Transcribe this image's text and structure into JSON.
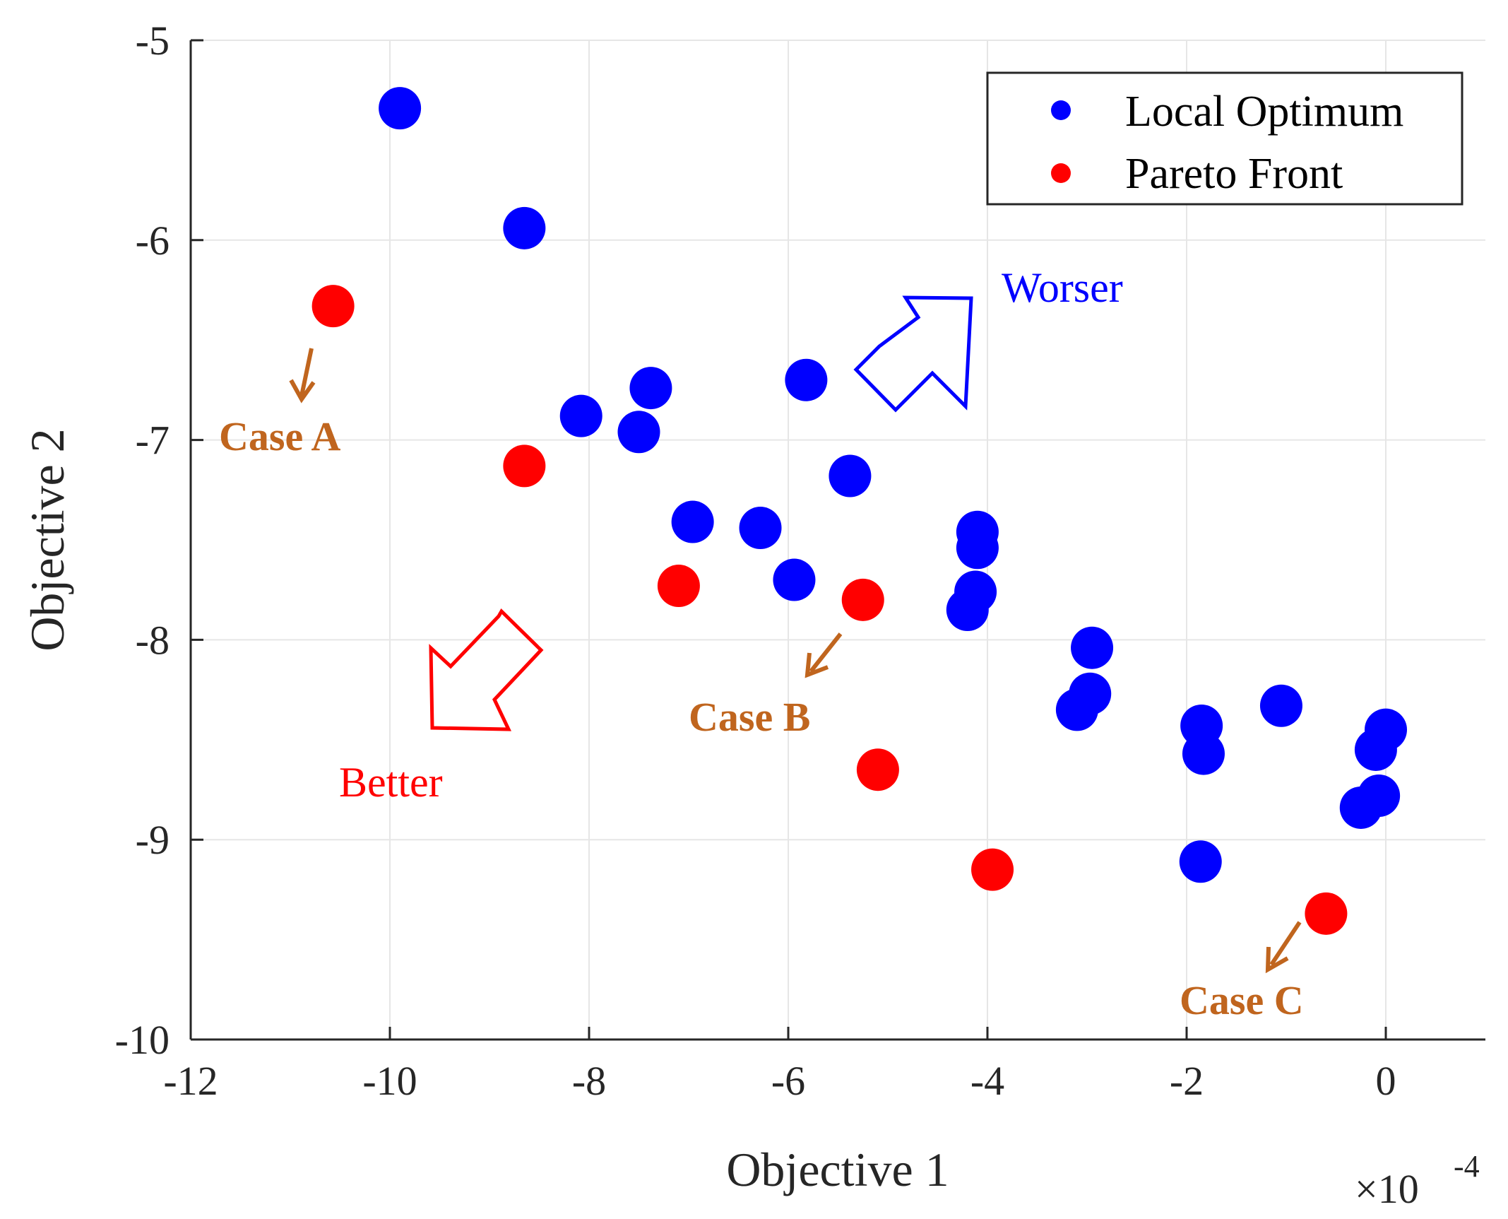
{
  "chart_data": {
    "type": "scatter",
    "title": "",
    "xlabel": "Objective 1",
    "ylabel": "Objective 2",
    "x_multiplier": "×10",
    "x_multiplier_exp": "-4",
    "xlim": [
      -12,
      1
    ],
    "ylim": [
      -10,
      -5
    ],
    "xticks": [
      -12,
      -10,
      -8,
      -6,
      -4,
      -2,
      0
    ],
    "yticks": [
      -5,
      -6,
      -7,
      -8,
      -9,
      -10
    ],
    "xtick_labels": [
      "-12",
      "-10",
      "-8",
      "-6",
      "-4",
      "-2",
      "0"
    ],
    "ytick_labels": [
      "-5",
      "-6",
      "-7",
      "-8",
      "-9",
      "-10"
    ],
    "grid": true,
    "legend_position": "top-right",
    "series": [
      {
        "name": "Local Optimum",
        "color": "#0000ff",
        "points": [
          [
            -9.9,
            -5.34
          ],
          [
            -8.65,
            -5.94
          ],
          [
            -7.38,
            -6.74
          ],
          [
            -8.08,
            -6.88
          ],
          [
            -7.5,
            -6.96
          ],
          [
            -5.82,
            -6.7
          ],
          [
            -5.38,
            -7.18
          ],
          [
            -6.96,
            -7.41
          ],
          [
            -6.28,
            -7.44
          ],
          [
            -5.94,
            -7.7
          ],
          [
            -4.1,
            -7.46
          ],
          [
            -4.1,
            -7.54
          ],
          [
            -4.12,
            -7.76
          ],
          [
            -4.2,
            -7.85
          ],
          [
            -2.95,
            -8.04
          ],
          [
            -2.97,
            -8.27
          ],
          [
            -3.1,
            -8.35
          ],
          [
            -1.85,
            -8.43
          ],
          [
            -1.83,
            -8.57
          ],
          [
            -1.05,
            -8.33
          ],
          [
            0.0,
            -8.45
          ],
          [
            -0.1,
            -8.55
          ],
          [
            -0.07,
            -8.78
          ],
          [
            -0.25,
            -8.84
          ],
          [
            -1.86,
            -9.11
          ]
        ]
      },
      {
        "name": "Pareto Front",
        "color": "#ff0000",
        "points": [
          [
            -10.57,
            -6.33
          ],
          [
            -8.65,
            -7.13
          ],
          [
            -7.1,
            -7.73
          ],
          [
            -5.25,
            -7.8
          ],
          [
            -5.1,
            -8.65
          ],
          [
            -3.95,
            -9.15
          ],
          [
            -0.6,
            -9.37
          ]
        ]
      }
    ],
    "annotations": [
      {
        "text": "Case A",
        "color": "#c0651e"
      },
      {
        "text": "Case B",
        "color": "#c0651e"
      },
      {
        "text": "Case C",
        "color": "#c0651e"
      },
      {
        "text": "Worser",
        "color": "#0000ff"
      },
      {
        "text": "Better",
        "color": "#ff0000"
      }
    ]
  }
}
